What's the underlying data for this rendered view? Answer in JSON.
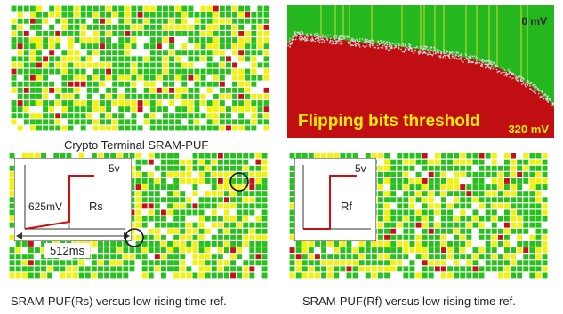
{
  "colors": {
    "grid_line": "#ffffff",
    "bit_green": "#27c11d",
    "bit_yellow": "#f2f20a",
    "bit_white": "#ffffff",
    "bit_red": "#c8101a",
    "map_green": "#25b81e",
    "map_red": "#c10e12",
    "map_noise": "#dcdcdc",
    "map_spike": "#e8e23a",
    "inset_curve": "#cc1010",
    "label_yellow": "#ffee00"
  },
  "crypto_puf": {
    "caption": "Crypto Terminal SRAM-PUF"
  },
  "threshold_map": {
    "top_label": "0 mV",
    "bottom_label": "320 mV",
    "title": "Flipping bits threshold"
  },
  "rs_puf": {
    "caption": "SRAM-PUF(Rs)  versus low rising time ref.",
    "inset": {
      "voltage_top": "5v",
      "voltage_step": "625mV",
      "curve_label": "Rs",
      "time_label": "512ms"
    }
  },
  "rf_puf": {
    "caption": "SRAM-PUF(Rf)  versus low rising time ref.",
    "inset": {
      "voltage_top": "5v",
      "curve_label": "Rf"
    }
  }
}
